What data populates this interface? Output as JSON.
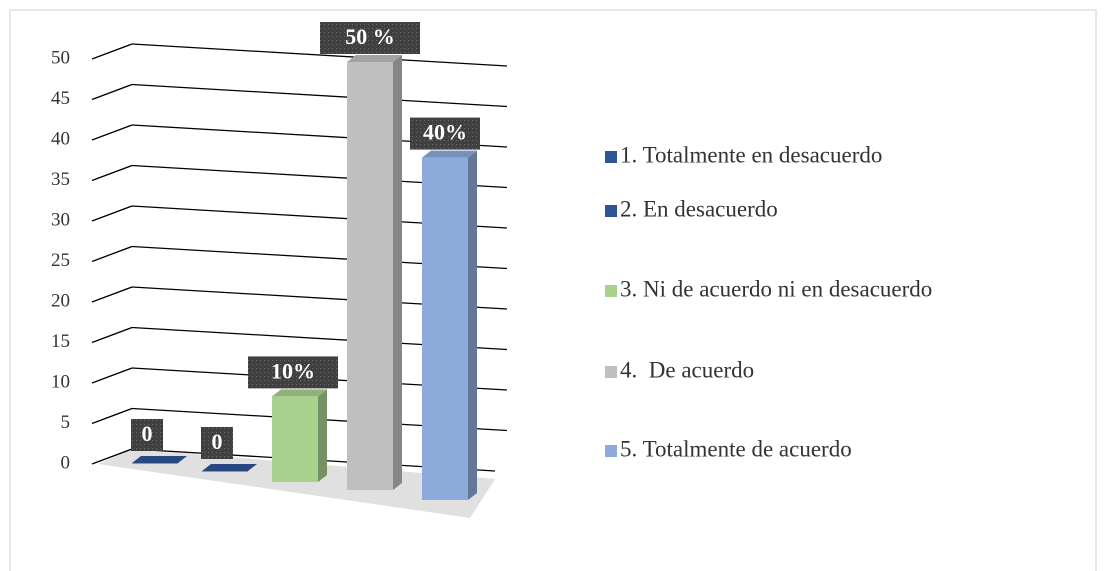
{
  "chart_data": {
    "type": "bar",
    "categories": [
      null
    ],
    "series": [
      {
        "name": "1. Totalmente en desacuerdo",
        "color": "#2e5597",
        "values": [
          0
        ],
        "value_labels": [
          "0"
        ]
      },
      {
        "name": "2. En desacuerdo",
        "color": "#2e5597",
        "values": [
          0
        ],
        "value_labels": [
          "0"
        ]
      },
      {
        "name": "3. Ni de acuerdo ni en desacuerdo",
        "color": "#a9d18e",
        "values": [
          10
        ],
        "value_labels": [
          "10%"
        ]
      },
      {
        "name": "4.  De acuerdo",
        "color": "#bfbfbf",
        "values": [
          50
        ],
        "value_labels": [
          "50 %"
        ]
      },
      {
        "name": "5. Totalmente de acuerdo",
        "color": "#8eaadb",
        "values": [
          40
        ],
        "value_labels": [
          "40%"
        ]
      }
    ],
    "ylim": [
      0,
      50
    ],
    "yticks": [
      0,
      5,
      10,
      15,
      20,
      25,
      30,
      35,
      40,
      45,
      50
    ],
    "grid": true
  }
}
